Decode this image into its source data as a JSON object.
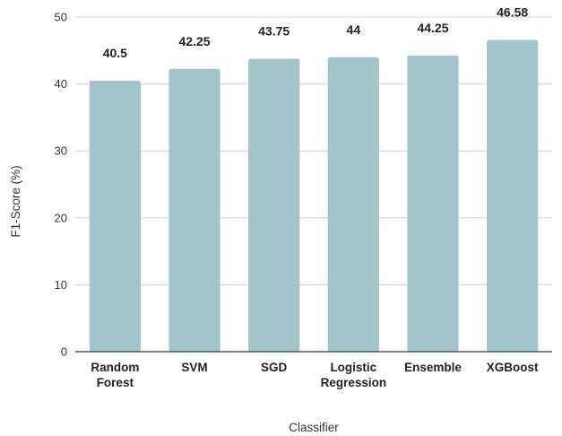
{
  "chart_data": {
    "type": "bar",
    "categories": [
      [
        "Random",
        "Forest"
      ],
      [
        "SVM"
      ],
      [
        "SGD"
      ],
      [
        "Logistic",
        "Regression"
      ],
      [
        "Ensemble"
      ],
      [
        "XGBoost"
      ]
    ],
    "values": [
      40.5,
      42.25,
      43.75,
      44,
      44.25,
      46.58
    ],
    "data_labels": [
      "40.5",
      "42.25",
      "43.75",
      "44",
      "44.25",
      "46.58"
    ],
    "title": "",
    "xlabel": "Classifier",
    "ylabel": "F1-Score (%)",
    "ylim": [
      0,
      50
    ],
    "yticks": [
      0,
      10,
      20,
      30,
      40,
      50
    ],
    "grid": true,
    "legend": "none",
    "colors": {
      "bar": "#a3c4c9",
      "grid": "#d3d3d3",
      "text": "#222222"
    }
  }
}
